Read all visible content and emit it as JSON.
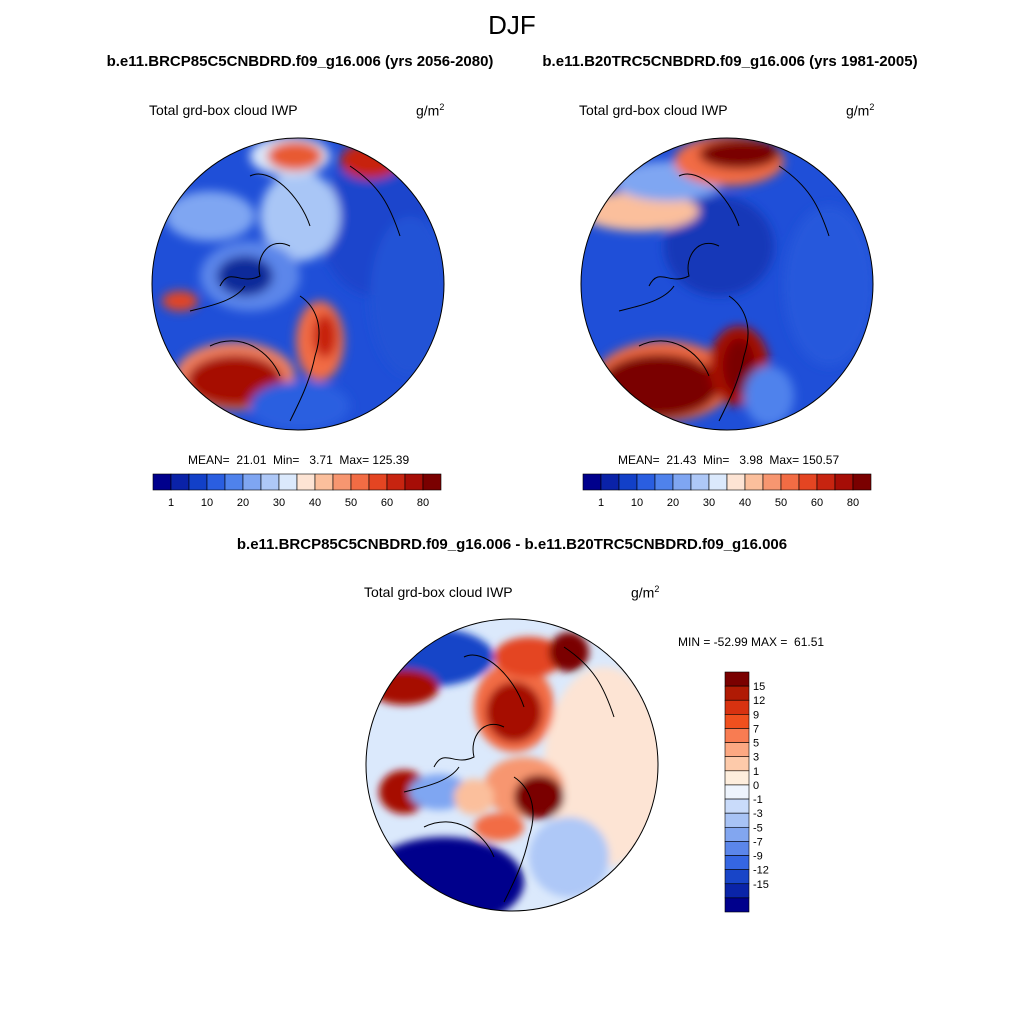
{
  "figure": {
    "title": "DJF",
    "case_left": "b.e11.BRCP85C5CNBDRD.f09_g16.006 (yrs 2056-2080)",
    "case_right": "b.e11.B20TRC5CNBDRD.f09_g16.006 (yrs 1981-2005)",
    "diff_title": "b.e11.BRCP85C5CNBDRD.f09_g16.006 - b.e11.B20TRC5CNBDRD.f09_g16.006"
  },
  "panels": {
    "left": {
      "variable": "Total grd-box cloud IWP",
      "units_base": "g/m",
      "units_exp": "2",
      "stats": "MEAN=  21.01  Min=   3.71  Max= 125.39"
    },
    "right": {
      "variable": "Total grd-box cloud IWP",
      "units_base": "g/m",
      "units_exp": "2",
      "stats": "MEAN=  21.43  Min=   3.98  Max= 150.57"
    },
    "diff": {
      "variable": "Total grd-box cloud IWP",
      "units_base": "g/m",
      "units_exp": "2",
      "stats": "MIN = -52.99 MAX =  61.51"
    }
  },
  "colorbar_abs": {
    "colors": [
      "#00008c",
      "#0a22a8",
      "#1240c8",
      "#2a5ee0",
      "#4f82ec",
      "#7fa6f2",
      "#aec8f7",
      "#dbe9fc",
      "#fde4d4",
      "#fbbf9c",
      "#f79670",
      "#f26c44",
      "#e44522",
      "#c72410",
      "#a60d06",
      "#7a0000"
    ],
    "labels": [
      "1",
      "10",
      "20",
      "30",
      "40",
      "50",
      "60",
      "80"
    ]
  },
  "colorbar_diff": {
    "colors": [
      "#7a0000",
      "#b01a04",
      "#d83210",
      "#f0501e",
      "#f87c52",
      "#fca882",
      "#fdcaaa",
      "#feeedd",
      "#eef4fd",
      "#c9dbfa",
      "#a8c3f5",
      "#82a6f0",
      "#5b86ea",
      "#3566e2",
      "#1845c8",
      "#0a24a8",
      "#00008c"
    ],
    "labels": [
      "15",
      "12",
      "9",
      "7",
      "5",
      "3",
      "1",
      "0",
      "-1",
      "-3",
      "-5",
      "-7",
      "-9",
      "-12",
      "-15"
    ]
  }
}
